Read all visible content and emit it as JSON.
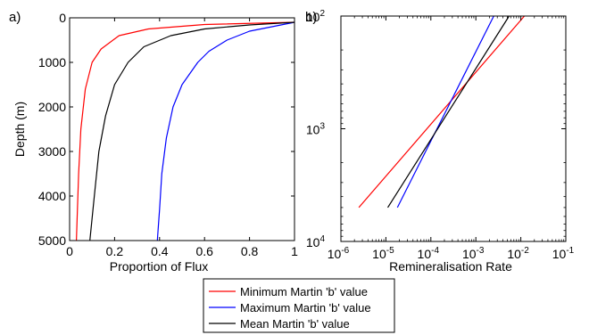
{
  "panel_a_label": "a)",
  "panel_b_label": "b)",
  "legend": {
    "entries": [
      {
        "label": "Minimum Martin 'b' value",
        "color": "#ff0000"
      },
      {
        "label": "Maximum Martin 'b' value",
        "color": "#0000ff"
      },
      {
        "label": "Mean Martin 'b' value",
        "color": "#000000"
      }
    ]
  },
  "chart_data": [
    {
      "type": "line",
      "xlabel": "Proportion of Flux",
      "ylabel": "Depth (m)",
      "xlim": [
        0,
        1
      ],
      "ylim": [
        5000,
        0
      ],
      "y_inverted": true,
      "x_ticks": [
        "0",
        "0.2",
        "0.4",
        "0.6",
        "0.8",
        "1"
      ],
      "y_ticks": [
        "0",
        "1000",
        "2000",
        "3000",
        "4000",
        "5000"
      ],
      "series": [
        {
          "name": "Minimum Martin 'b' value",
          "color": "#ff0000",
          "points": [
            [
              1.0,
              100
            ],
            [
              0.6,
              150
            ],
            [
              0.35,
              250
            ],
            [
              0.22,
              400
            ],
            [
              0.14,
              700
            ],
            [
              0.1,
              1000
            ],
            [
              0.07,
              1600
            ],
            [
              0.05,
              2500
            ],
            [
              0.04,
              3500
            ],
            [
              0.03,
              5000
            ]
          ]
        },
        {
          "name": "Maximum Martin 'b' value",
          "color": "#0000ff",
          "points": [
            [
              1.0,
              100
            ],
            [
              0.9,
              200
            ],
            [
              0.8,
              300
            ],
            [
              0.7,
              500
            ],
            [
              0.62,
              750
            ],
            [
              0.57,
              1000
            ],
            [
              0.5,
              1500
            ],
            [
              0.46,
              2000
            ],
            [
              0.43,
              2700
            ],
            [
              0.41,
              3500
            ],
            [
              0.4,
              4300
            ],
            [
              0.39,
              5000
            ]
          ]
        },
        {
          "name": "Mean Martin 'b' value",
          "color": "#000000",
          "points": [
            [
              1.0,
              100
            ],
            [
              0.8,
              160
            ],
            [
              0.6,
              250
            ],
            [
              0.45,
              400
            ],
            [
              0.33,
              650
            ],
            [
              0.26,
              1000
            ],
            [
              0.2,
              1500
            ],
            [
              0.16,
              2200
            ],
            [
              0.13,
              3000
            ],
            [
              0.11,
              4000
            ],
            [
              0.09,
              5000
            ]
          ]
        }
      ]
    },
    {
      "type": "line",
      "xlabel": "Remineralisation Rate",
      "ylabel": "",
      "x_scale": "log",
      "y_scale": "log",
      "xlim": [
        1e-06,
        0.1
      ],
      "ylim": [
        10000,
        100
      ],
      "y_inverted": true,
      "x_ticks": [
        "-6",
        "-5",
        "-4",
        "-3",
        "-2",
        "-1"
      ],
      "y_ticks": [
        "2",
        "3",
        "4"
      ],
      "series": [
        {
          "name": "Minimum Martin 'b' value",
          "color": "#ff0000",
          "points": [
            [
              2.5e-06,
              5000
            ],
            [
              0.012,
              100
            ]
          ]
        },
        {
          "name": "Maximum Martin 'b' value",
          "color": "#0000ff",
          "points": [
            [
              1.8e-05,
              5000
            ],
            [
              0.0025,
              100
            ]
          ]
        },
        {
          "name": "Mean Martin 'b' value",
          "color": "#000000",
          "points": [
            [
              1.1e-05,
              5000
            ],
            [
              0.0055,
              100
            ]
          ]
        }
      ]
    }
  ]
}
